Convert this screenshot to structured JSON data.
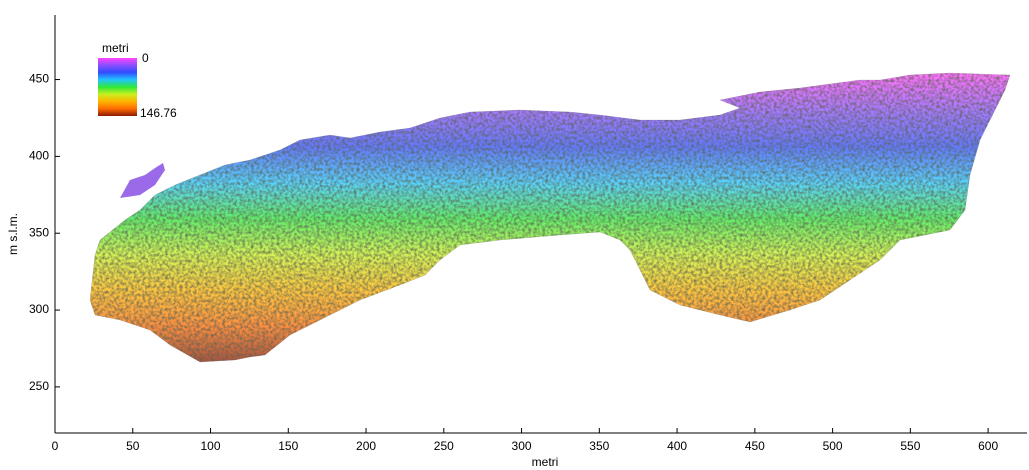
{
  "chart_data": {
    "type": "map",
    "xlabel": "metri",
    "ylabel": "m s.l.m.",
    "xlim": [
      0,
      625
    ],
    "ylim": [
      220,
      492
    ],
    "xticks": [
      0,
      50,
      100,
      150,
      200,
      250,
      300,
      350,
      400,
      450,
      500,
      550,
      600
    ],
    "yticks": [
      250,
      300,
      350,
      400,
      450
    ],
    "colorbar": {
      "label": "metri",
      "min": 0,
      "max": 146.76,
      "colors": [
        "#ff44ff",
        "#8a4dff",
        "#2f4dff",
        "#22c4ff",
        "#2ee83a",
        "#c8f01e",
        "#ffb400",
        "#ff6a00",
        "#8b1a00"
      ]
    }
  }
}
